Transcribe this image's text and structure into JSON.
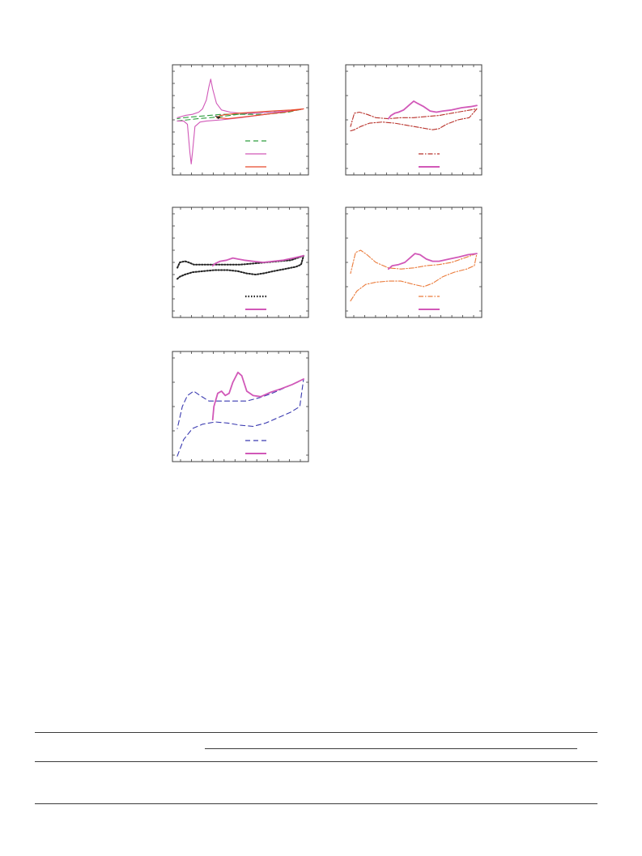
{
  "colors": {
    "frame": "#3d3d3d",
    "green": "#2e9e3e",
    "magenta": "#d158b8",
    "red": "#e8492a",
    "black": "#222222",
    "darkred": "#b8312a",
    "orange": "#ea7a3a",
    "blue": "#3a3ab0"
  },
  "chart_data": [
    {
      "type": "line",
      "panel": "top-left",
      "x_ticks": 12,
      "y_ticks": 9,
      "legend_position": "bottom-right",
      "series": [
        {
          "color_key": "green",
          "style": "dashed",
          "points": [
            [
              0.0,
              0.49
            ],
            [
              0.8,
              0.5
            ],
            [
              1.6,
              0.51
            ],
            [
              2.6,
              0.52
            ],
            [
              3.5,
              0.53
            ],
            [
              4.8,
              0.55
            ],
            [
              6.2,
              0.56
            ],
            [
              7.5,
              0.57
            ],
            [
              8.8,
              0.58
            ],
            [
              10.0,
              0.6
            ],
            [
              10.0,
              0.6
            ],
            [
              8.8,
              0.57
            ],
            [
              7.0,
              0.55
            ],
            [
              5.0,
              0.55
            ],
            [
              3.5,
              0.55
            ],
            [
              2.5,
              0.54
            ],
            [
              1.5,
              0.53
            ],
            [
              0.5,
              0.52
            ],
            [
              0.0,
              0.51
            ]
          ]
        },
        {
          "color_key": "magenta",
          "style": "solid",
          "points": [
            [
              0.0,
              0.49
            ],
            [
              0.5,
              0.49
            ],
            [
              0.8,
              0.46
            ],
            [
              1.0,
              0.2
            ],
            [
              1.1,
              0.1
            ],
            [
              1.2,
              0.2
            ],
            [
              1.4,
              0.44
            ],
            [
              1.8,
              0.48
            ],
            [
              2.3,
              0.49
            ],
            [
              3.5,
              0.5
            ],
            [
              5.0,
              0.52
            ],
            [
              7.0,
              0.55
            ],
            [
              9.0,
              0.58
            ],
            [
              10.0,
              0.6
            ],
            [
              10.0,
              0.6
            ],
            [
              8.8,
              0.58
            ],
            [
              7.5,
              0.57
            ],
            [
              6.0,
              0.56
            ],
            [
              5.0,
              0.56
            ],
            [
              4.2,
              0.57
            ],
            [
              3.5,
              0.59
            ],
            [
              3.1,
              0.65
            ],
            [
              2.8,
              0.78
            ],
            [
              2.65,
              0.87
            ],
            [
              2.5,
              0.8
            ],
            [
              2.3,
              0.68
            ],
            [
              2.0,
              0.6
            ],
            [
              1.7,
              0.57
            ],
            [
              1.2,
              0.55
            ],
            [
              0.6,
              0.54
            ],
            [
              0.0,
              0.52
            ]
          ]
        },
        {
          "color_key": "red",
          "style": "solid",
          "points": [
            [
              3.1,
              0.52
            ],
            [
              4.0,
              0.51
            ],
            [
              5.5,
              0.53
            ],
            [
              7.0,
              0.55
            ],
            [
              8.5,
              0.57
            ],
            [
              10.0,
              0.6
            ],
            [
              10.0,
              0.6
            ],
            [
              9.0,
              0.59
            ],
            [
              7.5,
              0.58
            ],
            [
              6.0,
              0.57
            ],
            [
              4.8,
              0.56
            ],
            [
              4.0,
              0.55
            ],
            [
              3.4,
              0.54
            ],
            [
              3.1,
              0.52
            ]
          ]
        }
      ],
      "arrow": [
        [
          3.0,
          0.535
        ],
        [
          3.4,
          0.52
        ]
      ]
    },
    {
      "type": "line",
      "panel": "top-right",
      "x_ticks": 12,
      "y_ticks": 5,
      "legend_position": "bottom-right",
      "series": [
        {
          "color_key": "darkred",
          "style": "dashdot",
          "points": [
            [
              0.0,
              0.4
            ],
            [
              0.3,
              0.41
            ],
            [
              0.8,
              0.44
            ],
            [
              1.5,
              0.47
            ],
            [
              2.5,
              0.48
            ],
            [
              3.5,
              0.47
            ],
            [
              4.5,
              0.45
            ],
            [
              5.5,
              0.43
            ],
            [
              6.5,
              0.41
            ],
            [
              7.0,
              0.42
            ],
            [
              7.6,
              0.46
            ],
            [
              8.5,
              0.5
            ],
            [
              9.4,
              0.52
            ],
            [
              10.0,
              0.6
            ],
            [
              10.0,
              0.6
            ],
            [
              9.0,
              0.58
            ],
            [
              8.0,
              0.56
            ],
            [
              7.0,
              0.54
            ],
            [
              6.0,
              0.53
            ],
            [
              5.0,
              0.52
            ],
            [
              4.0,
              0.52
            ],
            [
              3.0,
              0.51
            ],
            [
              2.0,
              0.52
            ],
            [
              1.3,
              0.55
            ],
            [
              0.7,
              0.57
            ],
            [
              0.3,
              0.56
            ],
            [
              0.0,
              0.44
            ]
          ]
        },
        {
          "color_key": "magenta",
          "style": "solid",
          "points": [
            [
              3.0,
              0.51
            ],
            [
              3.2,
              0.54
            ],
            [
              3.5,
              0.56
            ],
            [
              3.8,
              0.57
            ],
            [
              4.2,
              0.59
            ],
            [
              4.6,
              0.63
            ],
            [
              5.0,
              0.67
            ],
            [
              5.3,
              0.65
            ],
            [
              5.8,
              0.62
            ],
            [
              6.3,
              0.58
            ],
            [
              6.8,
              0.57
            ],
            [
              7.3,
              0.58
            ],
            [
              8.0,
              0.59
            ],
            [
              8.8,
              0.61
            ],
            [
              9.5,
              0.62
            ],
            [
              10.0,
              0.63
            ]
          ]
        }
      ]
    },
    {
      "type": "line",
      "panel": "middle-left",
      "x_ticks": 12,
      "y_ticks": 9,
      "legend_position": "bottom-right",
      "series": [
        {
          "color_key": "black",
          "style": "dotted",
          "points": [
            [
              0.0,
              0.35
            ],
            [
              0.2,
              0.37
            ],
            [
              0.6,
              0.39
            ],
            [
              1.2,
              0.41
            ],
            [
              2.0,
              0.42
            ],
            [
              3.0,
              0.43
            ],
            [
              4.0,
              0.43
            ],
            [
              4.8,
              0.42
            ],
            [
              5.5,
              0.4
            ],
            [
              6.2,
              0.39
            ],
            [
              6.8,
              0.4
            ],
            [
              7.6,
              0.42
            ],
            [
              8.5,
              0.44
            ],
            [
              9.4,
              0.46
            ],
            [
              9.8,
              0.48
            ],
            [
              10.0,
              0.56
            ],
            [
              10.0,
              0.56
            ],
            [
              9.0,
              0.52
            ],
            [
              8.0,
              0.51
            ],
            [
              7.0,
              0.5
            ],
            [
              6.0,
              0.49
            ],
            [
              5.0,
              0.48
            ],
            [
              4.0,
              0.48
            ],
            [
              3.0,
              0.48
            ],
            [
              2.0,
              0.48
            ],
            [
              1.3,
              0.48
            ],
            [
              0.9,
              0.5
            ],
            [
              0.6,
              0.51
            ],
            [
              0.2,
              0.5
            ],
            [
              0.0,
              0.45
            ]
          ]
        },
        {
          "color_key": "magenta",
          "style": "solid",
          "points": [
            [
              2.8,
              0.47
            ],
            [
              3.0,
              0.49
            ],
            [
              3.4,
              0.51
            ],
            [
              3.9,
              0.52
            ],
            [
              4.4,
              0.54
            ],
            [
              4.8,
              0.53
            ],
            [
              5.3,
              0.52
            ],
            [
              6.0,
              0.51
            ],
            [
              6.8,
              0.5
            ],
            [
              7.6,
              0.51
            ],
            [
              8.4,
              0.52
            ],
            [
              9.2,
              0.54
            ],
            [
              10.0,
              0.56
            ]
          ]
        }
      ]
    },
    {
      "type": "line",
      "panel": "middle-right",
      "x_ticks": 12,
      "y_ticks": 5,
      "legend_position": "bottom-right",
      "series": [
        {
          "color_key": "orange",
          "style": "dashdot",
          "points": [
            [
              0.0,
              0.15
            ],
            [
              0.5,
              0.24
            ],
            [
              1.2,
              0.3
            ],
            [
              2.0,
              0.32
            ],
            [
              3.0,
              0.33
            ],
            [
              4.0,
              0.33
            ],
            [
              5.0,
              0.3
            ],
            [
              5.8,
              0.28
            ],
            [
              6.5,
              0.31
            ],
            [
              7.3,
              0.37
            ],
            [
              8.2,
              0.41
            ],
            [
              9.2,
              0.44
            ],
            [
              9.8,
              0.47
            ],
            [
              10.0,
              0.58
            ],
            [
              10.0,
              0.58
            ],
            [
              9.0,
              0.54
            ],
            [
              8.0,
              0.5
            ],
            [
              7.0,
              0.48
            ],
            [
              6.0,
              0.47
            ],
            [
              5.0,
              0.45
            ],
            [
              4.0,
              0.44
            ],
            [
              3.0,
              0.45
            ],
            [
              2.0,
              0.5
            ],
            [
              1.3,
              0.57
            ],
            [
              0.8,
              0.61
            ],
            [
              0.4,
              0.59
            ],
            [
              0.0,
              0.4
            ]
          ]
        },
        {
          "color_key": "magenta",
          "style": "solid",
          "points": [
            [
              3.0,
              0.44
            ],
            [
              3.3,
              0.47
            ],
            [
              3.8,
              0.48
            ],
            [
              4.3,
              0.5
            ],
            [
              4.8,
              0.55
            ],
            [
              5.1,
              0.58
            ],
            [
              5.5,
              0.57
            ],
            [
              6.0,
              0.53
            ],
            [
              6.5,
              0.51
            ],
            [
              7.0,
              0.51
            ],
            [
              7.8,
              0.53
            ],
            [
              8.6,
              0.55
            ],
            [
              9.3,
              0.57
            ],
            [
              10.0,
              0.58
            ]
          ]
        }
      ]
    },
    {
      "type": "line",
      "panel": "bottom-left",
      "x_ticks": 12,
      "y_ticks": 5,
      "legend_position": "bottom-right",
      "series": [
        {
          "color_key": "blue",
          "style": "dashed",
          "points": [
            [
              0.0,
              0.05
            ],
            [
              0.5,
              0.2
            ],
            [
              1.2,
              0.3
            ],
            [
              2.0,
              0.34
            ],
            [
              3.0,
              0.36
            ],
            [
              4.0,
              0.35
            ],
            [
              5.0,
              0.33
            ],
            [
              6.0,
              0.32
            ],
            [
              7.0,
              0.35
            ],
            [
              8.0,
              0.4
            ],
            [
              9.0,
              0.45
            ],
            [
              9.7,
              0.5
            ],
            [
              10.0,
              0.75
            ],
            [
              10.0,
              0.75
            ],
            [
              9.5,
              0.72
            ],
            [
              8.5,
              0.67
            ],
            [
              7.5,
              0.62
            ],
            [
              6.5,
              0.58
            ],
            [
              5.5,
              0.55
            ],
            [
              4.5,
              0.55
            ],
            [
              3.5,
              0.55
            ],
            [
              2.5,
              0.55
            ],
            [
              1.8,
              0.6
            ],
            [
              1.3,
              0.64
            ],
            [
              0.8,
              0.6
            ],
            [
              0.4,
              0.5
            ],
            [
              0.0,
              0.3
            ]
          ]
        },
        {
          "color_key": "magenta",
          "style": "solid",
          "points": [
            [
              2.8,
              0.38
            ],
            [
              2.9,
              0.5
            ],
            [
              3.2,
              0.62
            ],
            [
              3.5,
              0.64
            ],
            [
              3.8,
              0.6
            ],
            [
              4.1,
              0.62
            ],
            [
              4.4,
              0.72
            ],
            [
              4.8,
              0.81
            ],
            [
              5.1,
              0.78
            ],
            [
              5.5,
              0.64
            ],
            [
              6.0,
              0.6
            ],
            [
              6.6,
              0.59
            ],
            [
              7.4,
              0.63
            ],
            [
              8.2,
              0.66
            ],
            [
              9.1,
              0.7
            ],
            [
              10.0,
              0.75
            ]
          ]
        }
      ]
    }
  ]
}
